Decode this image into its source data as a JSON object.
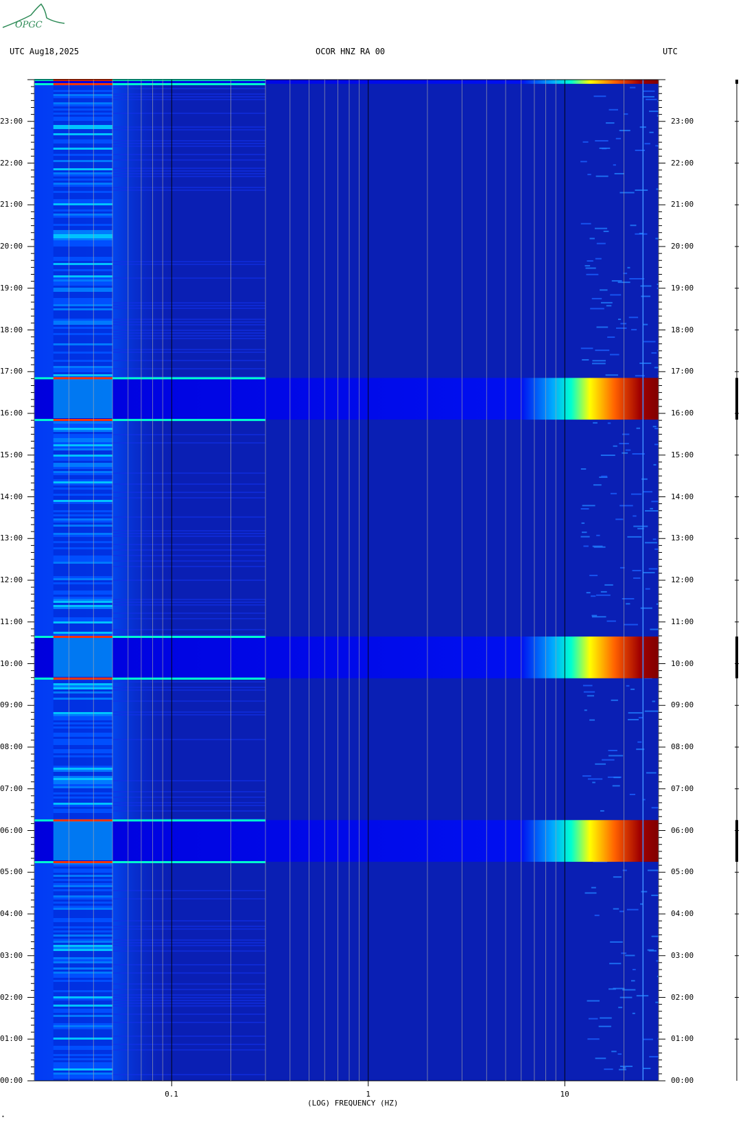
{
  "logo": {
    "text": "OPGC",
    "color": "#2e8b57"
  },
  "header": {
    "left": "UTC  Aug18,2025",
    "center": "OCOR HNZ RA 00",
    "right": "UTC"
  },
  "chart_data": {
    "type": "heatmap",
    "title": "OCOR HNZ RA 00",
    "date": "Aug18,2025",
    "timezone": "UTC",
    "xlabel": "(LOG) FREQUENCY (HZ)",
    "x_scale": "log",
    "xlim": [
      0.02,
      30
    ],
    "x_ticks": [
      {
        "value": 0.1,
        "label": "0.1"
      },
      {
        "value": 1,
        "label": "1"
      },
      {
        "value": 10,
        "label": "10"
      }
    ],
    "ylim_hours": [
      0,
      24
    ],
    "y_ticks": [
      {
        "hour": 23,
        "label": "23:00"
      },
      {
        "hour": 22,
        "label": "22:00"
      },
      {
        "hour": 21,
        "label": "21:00"
      },
      {
        "hour": 20,
        "label": "20:00"
      },
      {
        "hour": 19,
        "label": "19:00"
      },
      {
        "hour": 18,
        "label": "18:00"
      },
      {
        "hour": 17,
        "label": "17:00"
      },
      {
        "hour": 16,
        "label": "16:00"
      },
      {
        "hour": 15,
        "label": "15:00"
      },
      {
        "hour": 14,
        "label": "14:00"
      },
      {
        "hour": 13,
        "label": "13:00"
      },
      {
        "hour": 12,
        "label": "12:00"
      },
      {
        "hour": 11,
        "label": "11:00"
      },
      {
        "hour": 10,
        "label": "10:00"
      },
      {
        "hour": 9,
        "label": "09:00"
      },
      {
        "hour": 8,
        "label": "08:00"
      },
      {
        "hour": 7,
        "label": "07:00"
      },
      {
        "hour": 6,
        "label": "06:00"
      },
      {
        "hour": 5,
        "label": "05:00"
      },
      {
        "hour": 4,
        "label": "04:00"
      },
      {
        "hour": 3,
        "label": "03:00"
      },
      {
        "hour": 2,
        "label": "02:00"
      },
      {
        "hour": 1,
        "label": "01:00"
      },
      {
        "hour": 0,
        "label": "00:00"
      }
    ],
    "high_energy_bands_hours": [
      {
        "start": 5.25,
        "end": 6.25
      },
      {
        "start": 9.65,
        "end": 10.65
      },
      {
        "start": 15.85,
        "end": 16.85
      },
      {
        "start": 23.9,
        "end": 24.0
      }
    ],
    "colormap": [
      "#00008b",
      "#0000ff",
      "#00bfff",
      "#00ffcc",
      "#ffff00",
      "#ff8c00",
      "#8b0000"
    ],
    "background_color": "#0a1fb4",
    "grid": true
  }
}
